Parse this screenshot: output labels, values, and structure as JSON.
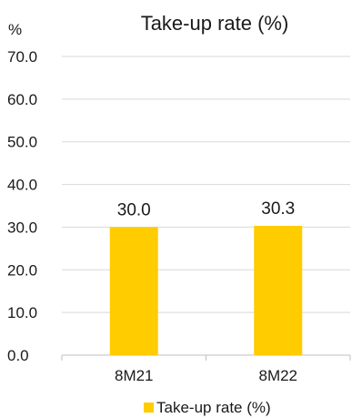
{
  "chart_data": {
    "type": "bar",
    "title": "Take-up rate (%)",
    "y_unit_label": "%",
    "categories": [
      "8M21",
      "8M22"
    ],
    "series": [
      {
        "name": "Take-up rate (%)",
        "values": [
          30.0,
          30.3
        ],
        "color": "#FFCC00"
      }
    ],
    "data_labels": [
      "30.0",
      "30.3"
    ],
    "ylim": [
      0,
      70
    ],
    "yticks": [
      "0.0",
      "10.0",
      "20.0",
      "30.0",
      "40.0",
      "50.0",
      "60.0",
      "70.0"
    ],
    "grid": true,
    "legend_position": "bottom"
  }
}
